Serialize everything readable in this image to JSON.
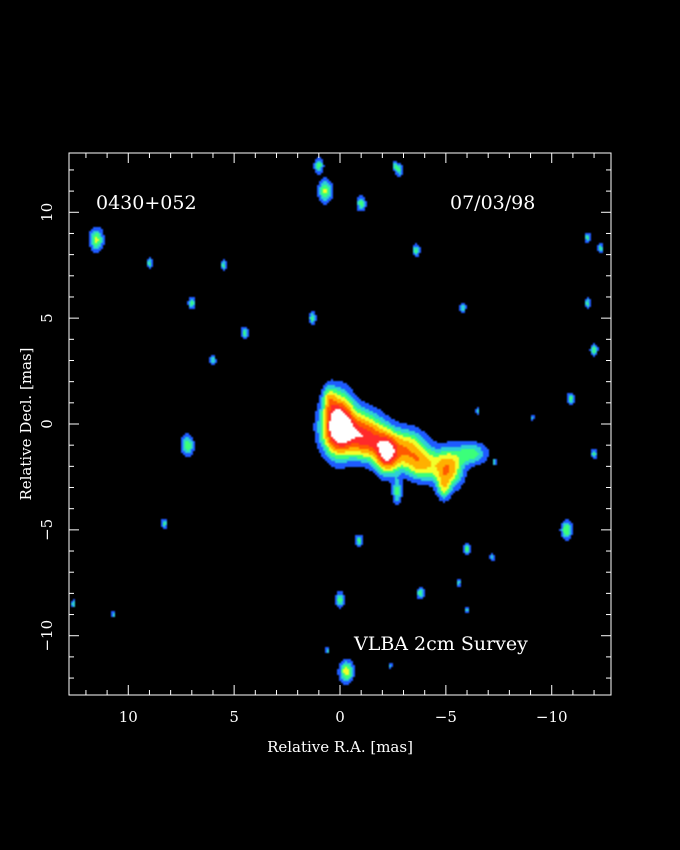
{
  "chart_data": {
    "type": "heatmap",
    "source_name": "0430+052",
    "date": "07/03/98",
    "survey_label": "VLBA 2cm Survey",
    "xlabel": "Relative R.A. [mas]",
    "ylabel": "Relative Decl. [mas]",
    "xlim": [
      12.8,
      -12.8
    ],
    "ylim": [
      -12.8,
      12.8
    ],
    "x_ticks_major": [
      10,
      5,
      0,
      -5,
      -10
    ],
    "y_ticks_major": [
      10,
      5,
      0,
      -5,
      -10
    ],
    "x_tick_labels": [
      "10",
      "5",
      "0",
      "−5",
      "−10"
    ],
    "y_tick_labels": [
      "10",
      "5",
      "0",
      "−5",
      "−10"
    ],
    "minor_tick_step": 1,
    "background_color": "#000000",
    "colormap": [
      "#1e5bff",
      "#2ecfd6",
      "#3bff7a",
      "#f2ff2b",
      "#ffb000",
      "#ff5a00",
      "#ff2a2a",
      "#ffffff"
    ],
    "jet_components": [
      {
        "x": 0.1,
        "y": 0.0,
        "sx": 0.45,
        "sy": 0.9,
        "peak": 1.0
      },
      {
        "x": -0.6,
        "y": -0.3,
        "sx": 0.8,
        "sy": 0.7,
        "peak": 0.55
      },
      {
        "x": -1.4,
        "y": -0.8,
        "sx": 0.6,
        "sy": 0.6,
        "peak": 0.55
      },
      {
        "x": -2.2,
        "y": -1.4,
        "sx": 0.35,
        "sy": 0.6,
        "peak": 0.8
      },
      {
        "x": -3.1,
        "y": -1.2,
        "sx": 0.6,
        "sy": 0.6,
        "peak": 0.55
      },
      {
        "x": -3.9,
        "y": -1.9,
        "sx": 0.5,
        "sy": 0.5,
        "peak": 0.45
      },
      {
        "x": -5.1,
        "y": -2.1,
        "sx": 0.45,
        "sy": 0.6,
        "peak": 0.6
      },
      {
        "x": -6.2,
        "y": -1.4,
        "sx": 0.5,
        "sy": 0.35,
        "peak": 0.32
      },
      {
        "x": -2.7,
        "y": -3.2,
        "sx": 0.15,
        "sy": 0.4,
        "peak": 0.3
      },
      {
        "x": -4.9,
        "y": -3.0,
        "sx": 0.2,
        "sy": 0.4,
        "peak": 0.3
      },
      {
        "x": 0.5,
        "y": 1.2,
        "sx": 0.2,
        "sy": 0.4,
        "peak": 0.3
      }
    ],
    "noise_blobs": [
      {
        "x": 11.5,
        "y": 8.7,
        "s": 0.22,
        "peak": 0.38
      },
      {
        "x": 0.7,
        "y": 11.0,
        "s": 0.22,
        "peak": 0.38
      },
      {
        "x": -1.0,
        "y": 10.4,
        "s": 0.15,
        "peak": 0.3
      },
      {
        "x": 1.0,
        "y": 12.2,
        "s": 0.15,
        "peak": 0.3
      },
      {
        "x": -2.8,
        "y": 12.0,
        "s": 0.12,
        "peak": 0.3
      },
      {
        "x": -3.6,
        "y": 8.2,
        "s": 0.12,
        "peak": 0.3
      },
      {
        "x": 7.0,
        "y": 5.7,
        "s": 0.12,
        "peak": 0.3
      },
      {
        "x": 4.5,
        "y": 4.3,
        "s": 0.12,
        "peak": 0.3
      },
      {
        "x": 1.3,
        "y": 5.0,
        "s": 0.12,
        "peak": 0.3
      },
      {
        "x": 9.0,
        "y": 7.6,
        "s": 0.1,
        "peak": 0.28
      },
      {
        "x": 5.5,
        "y": 7.5,
        "s": 0.1,
        "peak": 0.28
      },
      {
        "x": 6.0,
        "y": 3.0,
        "s": 0.1,
        "peak": 0.28
      },
      {
        "x": -5.8,
        "y": 5.5,
        "s": 0.1,
        "peak": 0.28
      },
      {
        "x": -11.7,
        "y": 8.8,
        "s": 0.1,
        "peak": 0.28
      },
      {
        "x": -11.7,
        "y": 5.7,
        "s": 0.1,
        "peak": 0.28
      },
      {
        "x": -12.0,
        "y": 3.5,
        "s": 0.12,
        "peak": 0.3
      },
      {
        "x": -10.9,
        "y": 1.2,
        "s": 0.12,
        "peak": 0.3
      },
      {
        "x": -12.0,
        "y": -1.4,
        "s": 0.1,
        "peak": 0.28
      },
      {
        "x": 7.2,
        "y": -1.0,
        "s": 0.2,
        "peak": 0.34
      },
      {
        "x": 8.3,
        "y": -4.7,
        "s": 0.1,
        "peak": 0.28
      },
      {
        "x": -0.9,
        "y": -5.5,
        "s": 0.12,
        "peak": 0.3
      },
      {
        "x": -10.7,
        "y": -5.0,
        "s": 0.18,
        "peak": 0.36
      },
      {
        "x": -6.0,
        "y": -5.9,
        "s": 0.12,
        "peak": 0.3
      },
      {
        "x": -7.2,
        "y": -6.3,
        "s": 0.08,
        "peak": 0.26
      },
      {
        "x": 0.0,
        "y": -8.3,
        "s": 0.15,
        "peak": 0.32
      },
      {
        "x": -3.8,
        "y": -8.0,
        "s": 0.12,
        "peak": 0.3
      },
      {
        "x": -5.6,
        "y": -7.5,
        "s": 0.08,
        "peak": 0.26
      },
      {
        "x": 12.6,
        "y": -8.5,
        "s": 0.08,
        "peak": 0.26
      },
      {
        "x": 10.7,
        "y": -9.0,
        "s": 0.07,
        "peak": 0.24
      },
      {
        "x": -6.0,
        "y": -8.8,
        "s": 0.06,
        "peak": 0.24
      },
      {
        "x": 0.6,
        "y": -10.7,
        "s": 0.07,
        "peak": 0.24
      },
      {
        "x": -0.3,
        "y": -11.7,
        "s": 0.22,
        "peak": 0.42
      },
      {
        "x": -2.4,
        "y": -11.4,
        "s": 0.06,
        "peak": 0.24
      },
      {
        "x": -6.5,
        "y": 0.6,
        "s": 0.07,
        "peak": 0.24
      },
      {
        "x": -7.3,
        "y": -1.8,
        "s": 0.07,
        "peak": 0.24
      },
      {
        "x": -12.3,
        "y": 8.3,
        "s": 0.1,
        "peak": 0.28
      },
      {
        "x": -2.6,
        "y": 12.2,
        "s": 0.08,
        "peak": 0.26
      },
      {
        "x": -9.1,
        "y": 0.3,
        "s": 0.06,
        "peak": 0.24
      }
    ]
  }
}
